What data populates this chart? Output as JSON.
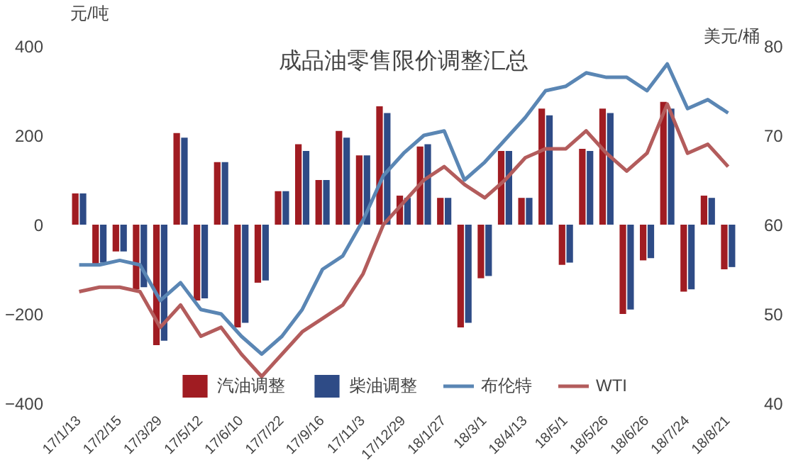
{
  "chart_data": {
    "type": "bar",
    "title": "成品油零售限价调整汇总",
    "ylabel": "元/吨",
    "y2label": "美元/桶",
    "categories": [
      "17/1/13",
      null,
      "17/2/15",
      null,
      "17/3/29",
      null,
      "17/5/12",
      null,
      "17/6/10",
      null,
      "17/7/22",
      null,
      "17/9/16",
      null,
      "17/11/3",
      null,
      "17/12/29",
      null,
      "18/1/27",
      null,
      "18/3/1",
      null,
      "18/4/13",
      null,
      "18/5/1",
      null,
      "18/5/26",
      null,
      "18/6/26",
      null,
      "18/7/24",
      null,
      "18/8/21"
    ],
    "series": [
      {
        "name": "汽油调整",
        "color": "#a01c22",
        "values": [
          70,
          -90,
          -60,
          -145,
          -270,
          205,
          -170,
          140,
          -230,
          -130,
          75,
          180,
          100,
          210,
          155,
          265,
          65,
          175,
          60,
          -230,
          -120,
          165,
          60,
          260,
          -90,
          170,
          260,
          -200,
          -80,
          275,
          -150,
          65,
          -100
        ]
      },
      {
        "name": "柴油调整",
        "color": "#2e4b86",
        "values": [
          70,
          -85,
          -60,
          -140,
          -260,
          195,
          -165,
          140,
          -220,
          -125,
          75,
          165,
          100,
          195,
          155,
          250,
          60,
          180,
          60,
          -220,
          -115,
          165,
          60,
          245,
          -85,
          165,
          250,
          -190,
          -75,
          260,
          -145,
          60,
          -95
        ]
      },
      {
        "name": "布伦特",
        "type": "line",
        "axis": "y2",
        "color": "#5a86b4",
        "values": [
          55.5,
          55.5,
          56,
          55.5,
          51.5,
          53.5,
          50.5,
          50,
          47.5,
          45.5,
          47.5,
          50.5,
          55,
          56.5,
          60.5,
          65.5,
          68,
          70,
          70.5,
          65,
          67,
          69.5,
          72,
          75,
          75.5,
          77,
          76.5,
          76.5,
          75,
          78,
          73,
          74,
          72.5
        ]
      },
      {
        "name": "WTI",
        "type": "line",
        "axis": "y2",
        "color": "#b35c5c",
        "values": [
          52.5,
          53,
          53,
          52.5,
          48.5,
          51,
          47.5,
          48.5,
          45.5,
          43,
          45.5,
          48,
          49.5,
          51,
          54.5,
          60,
          62.5,
          65,
          66.5,
          64.5,
          63,
          65,
          67.5,
          68.5,
          68.5,
          70.5,
          68,
          66,
          68,
          73.5,
          68,
          69,
          66.5
        ]
      }
    ],
    "ylim": [
      -400,
      400
    ],
    "yticks": [
      -400,
      -200,
      0,
      200,
      400
    ],
    "y2lim": [
      40,
      80
    ],
    "y2ticks": [
      40,
      50,
      60,
      70,
      80
    ],
    "grid": false,
    "legend": "bottom",
    "line_style": "solid",
    "marker": "none"
  }
}
